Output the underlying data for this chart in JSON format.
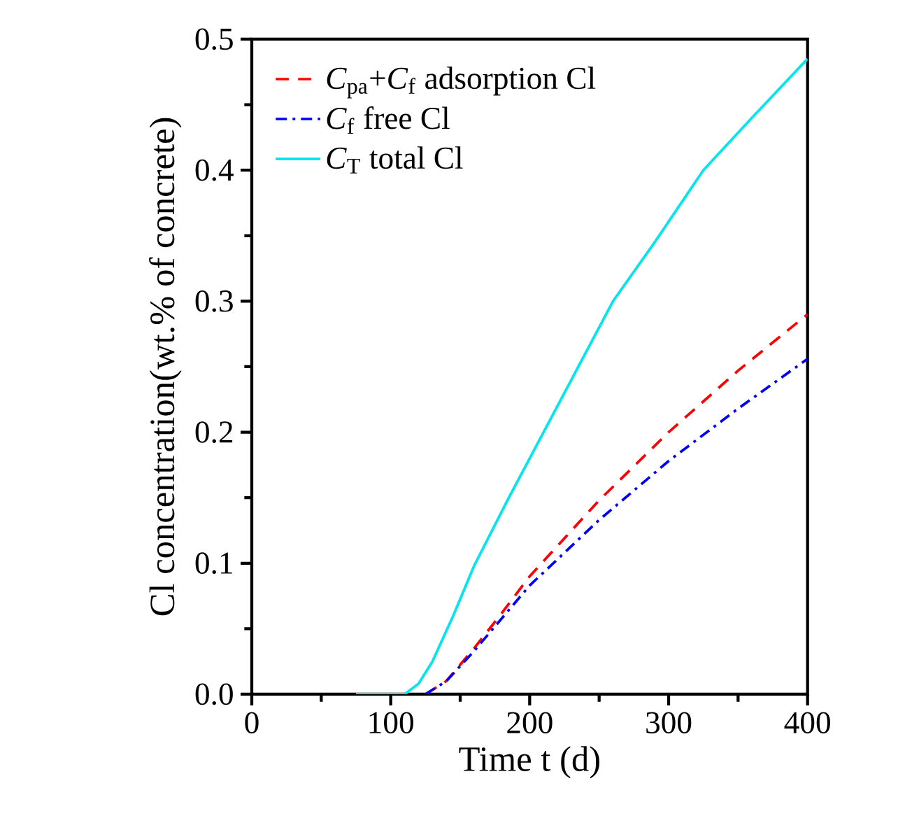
{
  "chart_data": {
    "type": "line",
    "xlabel": "Time t (d)",
    "ylabel": "Cl concentration(wt.% of concrete)",
    "xlim": [
      0,
      400
    ],
    "ylim": [
      0,
      0.5
    ],
    "xticks": [
      0,
      100,
      200,
      300,
      400
    ],
    "yticks": [
      {
        "value": 0,
        "label": "0.0"
      },
      0.1,
      0.2,
      0.3,
      0.4,
      0.5
    ],
    "legend": "top left",
    "grid": false,
    "marker": "none",
    "series": [
      {
        "name": "*C*$_{pa}$+*C*$_{f}$ adsorption Cl",
        "color": "#ff0000",
        "line_style": "dashed",
        "x": [
          125,
          140,
          160,
          180,
          200,
          250,
          300,
          350,
          400
        ],
        "values": [
          0,
          0.01,
          0.035,
          0.062,
          0.09,
          0.148,
          0.2,
          0.247,
          0.29
        ]
      },
      {
        "name": "*C*$_{f}$ free Cl",
        "color": "#0000ff",
        "line_style": "dashdot",
        "x": [
          125,
          140,
          160,
          180,
          200,
          250,
          300,
          350,
          400
        ],
        "values": [
          0,
          0.01,
          0.033,
          0.058,
          0.083,
          0.133,
          0.178,
          0.218,
          0.256
        ]
      },
      {
        "name": "*C*$_{T}$ total Cl",
        "color": "#00e5ee",
        "line_style": "solid",
        "x": [
          75,
          110,
          120,
          130,
          145,
          160,
          185,
          210,
          235,
          260,
          290,
          325,
          360,
          400
        ],
        "values": [
          0,
          0,
          0.008,
          0.025,
          0.06,
          0.098,
          0.15,
          0.2,
          0.25,
          0.3,
          0.345,
          0.4,
          0.44,
          0.485
        ]
      }
    ]
  }
}
